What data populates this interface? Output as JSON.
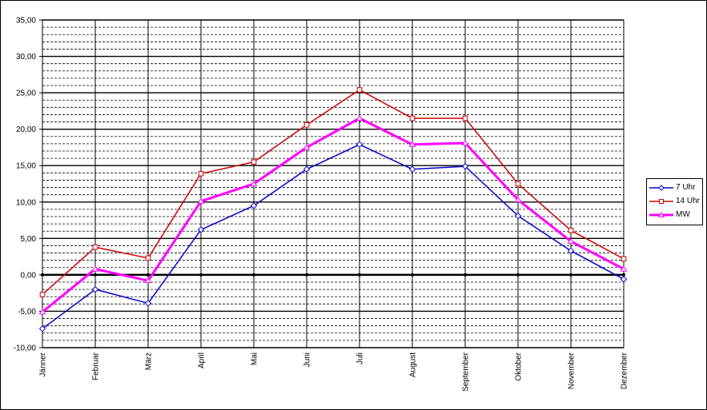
{
  "chart_data": {
    "type": "line",
    "categories": [
      "Jänner",
      "Februar",
      "März",
      "April",
      "Mai",
      "Juni",
      "Juli",
      "August",
      "September",
      "Oktober",
      "November",
      "Dezember"
    ],
    "ylim": [
      -10,
      35
    ],
    "y_ticks": [
      "-10,00",
      "-5,00",
      "0,00",
      "5,00",
      "10,00",
      "15,00",
      "20,00",
      "25,00",
      "30,00",
      "35,00"
    ],
    "y_major_step": 5,
    "y_minor_step": 1,
    "grid": true,
    "legend_position": "right",
    "series": [
      {
        "name": "7 Uhr",
        "color": "#0000cc",
        "marker": "diamond",
        "line_width": 1.5,
        "values": [
          -7.4,
          -2.0,
          -3.9,
          6.2,
          9.5,
          14.5,
          17.9,
          14.5,
          14.9,
          8.1,
          3.3,
          -0.6
        ]
      },
      {
        "name": "14 Uhr",
        "color": "#cc0000",
        "marker": "square",
        "line_width": 1.5,
        "values": [
          -2.7,
          3.8,
          2.3,
          13.9,
          15.5,
          20.6,
          25.4,
          21.5,
          21.5,
          12.5,
          6.1,
          2.2
        ]
      },
      {
        "name": "MW",
        "color": "#ff00ff",
        "marker": "triangle",
        "line_width": 3,
        "values": [
          -5.1,
          0.8,
          -0.8,
          10.1,
          12.5,
          17.5,
          21.5,
          17.9,
          18.1,
          10.3,
          4.6,
          0.8
        ]
      }
    ]
  }
}
